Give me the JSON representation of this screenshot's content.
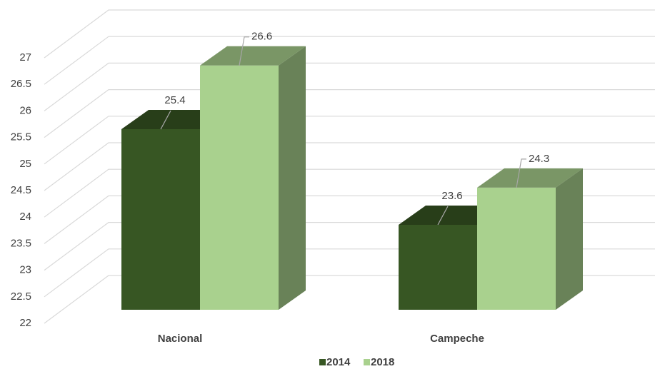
{
  "chart_data": {
    "type": "bar3d",
    "categories": [
      "Nacional",
      "Campeche"
    ],
    "series": [
      {
        "name": "2014",
        "color": "#375623",
        "values": [
          25.4,
          23.6
        ]
      },
      {
        "name": "2018",
        "color": "#a9d18e",
        "values": [
          26.6,
          24.3
        ]
      }
    ],
    "ylim": [
      22,
      27
    ],
    "yticks": [
      22,
      22.5,
      23,
      23.5,
      24,
      24.5,
      25,
      25.5,
      26,
      26.5,
      27
    ],
    "grid": true,
    "legend": "bottom"
  }
}
